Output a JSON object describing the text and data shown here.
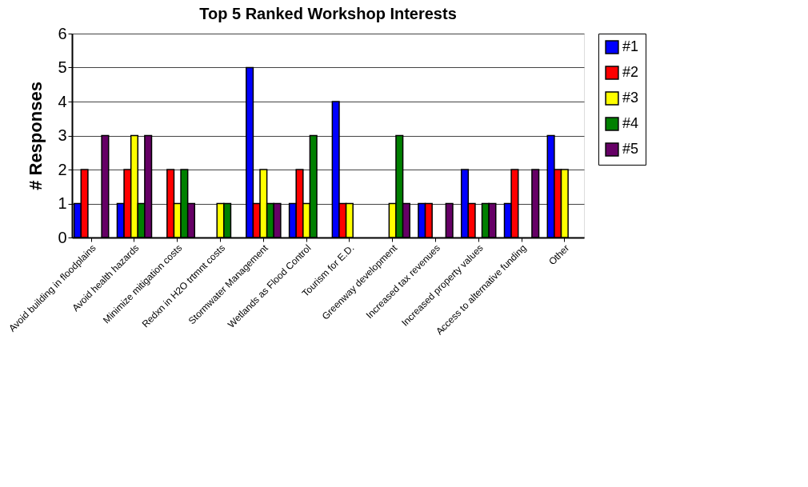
{
  "chart_data": {
    "type": "bar",
    "title": "Top 5 Ranked Workshop Interests",
    "ylabel": "# Responses",
    "categories": [
      "Avoid building in floodplains",
      "Avoid health hazards",
      "Minimize mitigation costs",
      "Redxn in  H2O trtmnt costs",
      "Stormwater Management",
      "Wetlands as Flood Control",
      "Tourism for E.D.",
      "Greenway development",
      "Increased tax revenues",
      "Increased property values",
      "Access to alternative funding",
      "Other"
    ],
    "series": [
      {
        "name": "#1",
        "color": "#0000ff",
        "values": [
          1,
          1,
          0,
          0,
          5,
          1,
          4,
          0,
          1,
          2,
          1,
          3
        ]
      },
      {
        "name": "#2",
        "color": "#ff0000",
        "values": [
          2,
          2,
          2,
          0,
          1,
          2,
          1,
          0,
          1,
          1,
          2,
          2
        ]
      },
      {
        "name": "#3",
        "color": "#ffff00",
        "values": [
          0,
          3,
          1,
          1,
          2,
          1,
          1,
          1,
          0,
          0,
          0,
          2
        ]
      },
      {
        "name": "#4",
        "color": "#008000",
        "values": [
          0,
          1,
          2,
          1,
          1,
          3,
          0,
          3,
          0,
          1,
          0,
          0
        ]
      },
      {
        "name": "#5",
        "color": "#660066",
        "values": [
          3,
          3,
          1,
          0,
          1,
          0,
          0,
          1,
          1,
          1,
          2,
          0
        ]
      }
    ],
    "ylim": [
      0,
      6
    ],
    "yticks": [
      0,
      1,
      2,
      3,
      4,
      5,
      6
    ],
    "grid": "y",
    "legend": "right"
  }
}
